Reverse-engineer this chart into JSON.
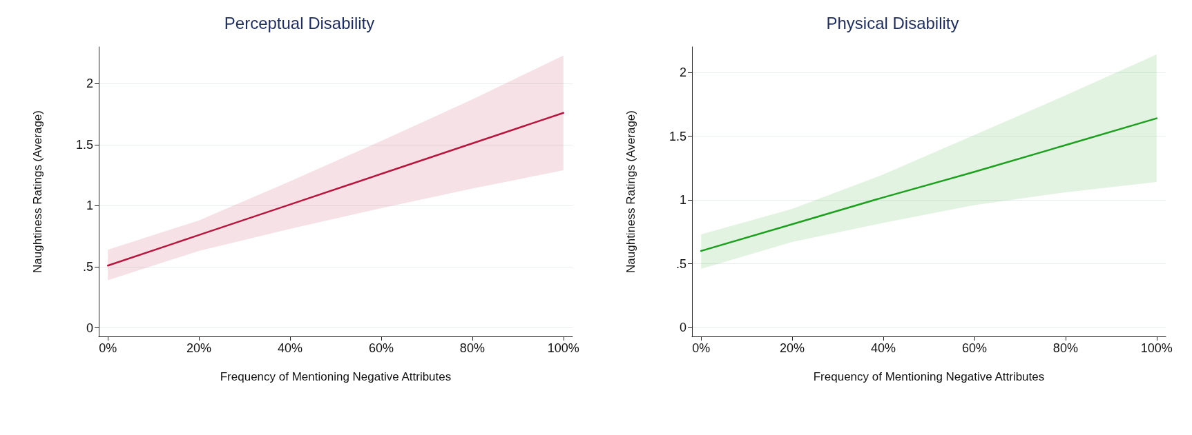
{
  "chart_data": [
    {
      "type": "line",
      "title": "Perceptual Disability",
      "xlabel": "Frequency of Mentioning Negative Attributes",
      "ylabel": "Naughtiness Ratings (Average)",
      "x": [
        0,
        20,
        40,
        60,
        80,
        100
      ],
      "series": [
        {
          "color": "#b5173f",
          "values": [
            0.51,
            0.76,
            1.01,
            1.26,
            1.51,
            1.76
          ],
          "lower": [
            0.39,
            0.63,
            0.81,
            0.98,
            1.14,
            1.29
          ],
          "upper": [
            0.64,
            0.88,
            1.2,
            1.53,
            1.87,
            2.23
          ]
        }
      ],
      "xlim": [
        -2,
        102
      ],
      "xticks": [
        {
          "value": 0,
          "label": "0%"
        },
        {
          "value": 20,
          "label": "20%"
        },
        {
          "value": 40,
          "label": "40%"
        },
        {
          "value": 60,
          "label": "60%"
        },
        {
          "value": 80,
          "label": "80%"
        },
        {
          "value": 100,
          "label": "100%"
        }
      ],
      "ylim": [
        -0.07,
        2.3
      ],
      "yticks": [
        0,
        {
          "value": 0.5,
          "label": ".5"
        },
        1,
        1.5,
        2
      ],
      "grid": "y",
      "marker": "none",
      "line_style": "solid"
    },
    {
      "type": "line",
      "title": "Physical Disability",
      "xlabel": "Frequency of Mentioning Negative Attributes",
      "ylabel": "Naughtiness Ratings (Average)",
      "x": [
        0,
        20,
        40,
        60,
        80,
        100
      ],
      "series": [
        {
          "color": "#1f9f1f",
          "values": [
            0.6,
            0.81,
            1.02,
            1.22,
            1.43,
            1.64
          ],
          "lower": [
            0.46,
            0.67,
            0.82,
            0.96,
            1.06,
            1.14
          ],
          "upper": [
            0.73,
            0.93,
            1.2,
            1.51,
            1.82,
            2.14
          ]
        }
      ],
      "xlim": [
        -2,
        102
      ],
      "xticks": [
        {
          "value": 0,
          "label": "0%"
        },
        {
          "value": 20,
          "label": "20%"
        },
        {
          "value": 40,
          "label": "40%"
        },
        {
          "value": 60,
          "label": "60%"
        },
        {
          "value": 80,
          "label": "80%"
        },
        {
          "value": 100,
          "label": "100%"
        }
      ],
      "ylim": [
        -0.07,
        2.2
      ],
      "yticks": [
        0,
        {
          "value": 0.5,
          "label": ".5"
        },
        1,
        1.5,
        2
      ],
      "grid": "y",
      "marker": "none",
      "line_style": "solid"
    }
  ]
}
